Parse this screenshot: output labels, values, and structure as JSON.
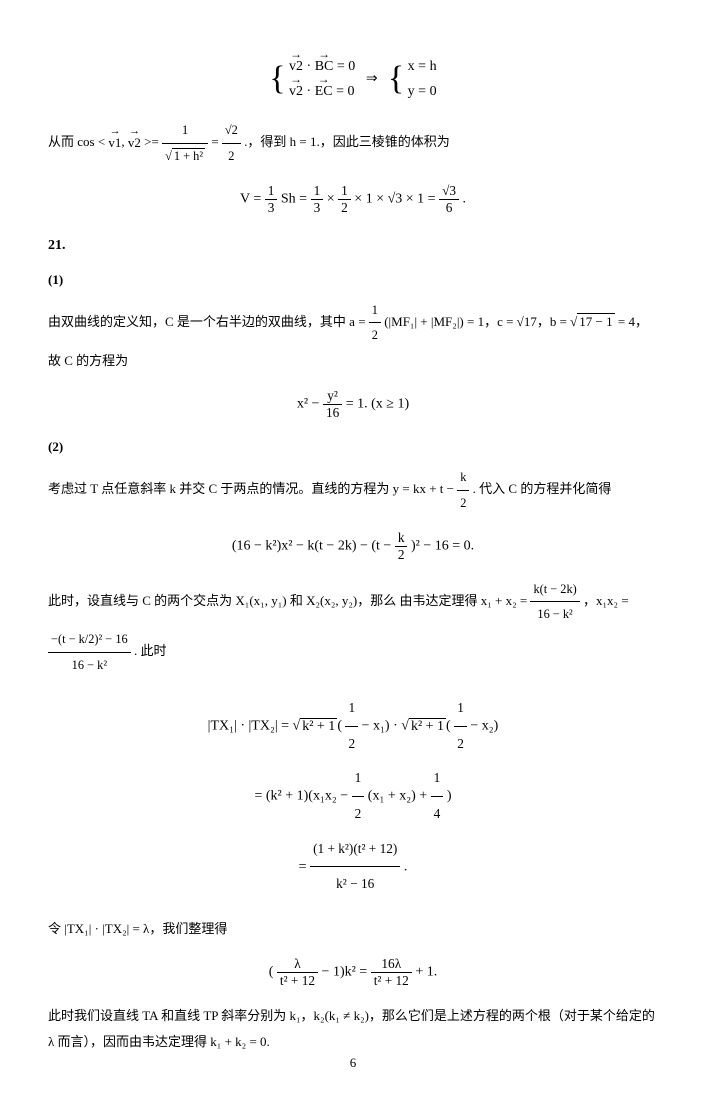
{
  "page_number": "6",
  "eq1": {
    "line1_lhs": "v2",
    "line1_vec2": "BC",
    "line1_rhs": "= 0",
    "line2_lhs": "v2",
    "line2_vec2": "EC",
    "line2_rhs": "= 0",
    "implies": "⇒",
    "res1": "x = h",
    "res2": "y = 0"
  },
  "para1": {
    "t1": "从而 cos < ",
    "v1": "v1",
    "comma": ", ",
    "v2": "v2",
    "t2": " >= ",
    "frac1_num": "1",
    "frac1_den_pre": "√",
    "frac1_den": "1 + h²",
    "eq": " = ",
    "frac2_num": "√2",
    "frac2_den": "2",
    "t3": ".，得到 h = 1.，因此三棱锥的体积为"
  },
  "eq2": {
    "lhs": "V = ",
    "f1n": "1",
    "f1d": "3",
    "mid1": "Sh = ",
    "f2n": "1",
    "f2d": "3",
    "times1": " × ",
    "f3n": "1",
    "f3d": "2",
    "mid2": " × 1 × √3 × 1 = ",
    "f4n": "√3",
    "f4d": "6",
    "end": "."
  },
  "h21": "21.",
  "h21_1": "(1)",
  "para2": {
    "t1": "由双曲线的定义知，C 是一个右半边的双曲线，其中 a = ",
    "f1n": "1",
    "f1d": "2",
    "t2": "(|MF₁| + |MF₂|) = 1，c = √17，b = √",
    "sqrt_inner": "17 − 1",
    "t3": " = 4，故 C 的方程为"
  },
  "eq3": {
    "pre": "x² − ",
    "fn": "y²",
    "fd": "16",
    "post": " = 1.  (x ≥ 1)"
  },
  "h21_2": "(2)",
  "para3": {
    "t1": "考虑过 T 点任意斜率 k 并交 C 于两点的情况。直线的方程为 y = kx + t − ",
    "fn": "k",
    "fd": "2",
    "t2": ". 代入 C 的方程并化简得"
  },
  "eq4": {
    "t1": "(16 − k²)x² − k(t − 2k) − (t − ",
    "fn": "k",
    "fd": "2",
    "t2": ")² − 16 = 0."
  },
  "para4": {
    "t1": "此时，设直线与 C 的两个交点为 X₁(x₁, y₁) 和 X₂(x₂, y₂)，那么 由韦达定理得 x₁ + x₂ = ",
    "f1n": "k(t − 2k)",
    "f1d": "16 − k²",
    "t2": "，x₁x₂ = ",
    "f2n": "−(t − k/2)² − 16",
    "f2d": "16 − k²",
    "t3": ". 此时"
  },
  "eq5a": {
    "lhs": "|TX₁| · |TX₂| = √",
    "s1": "k² + 1",
    "mid1": "(",
    "f1n": "1",
    "f1d": "2",
    "mid2": " − x₁) · √",
    "s2": "k² + 1",
    "mid3": "(",
    "f2n": "1",
    "f2d": "2",
    "mid4": " − x₂)"
  },
  "eq5b": {
    "pre": "= (k² + 1)(x₁x₂ − ",
    "f1n": "1",
    "f1d": "2",
    "mid": "(x₁ + x₂) + ",
    "f2n": "1",
    "f2d": "4",
    "post": ")"
  },
  "eq5c": {
    "pre": "= ",
    "fn": "(1 + k²)(t² + 12)",
    "fd": "k² − 16",
    "post": "."
  },
  "para5": "令 |TX₁| · |TX₂| = λ，我们整理得",
  "eq6": {
    "pre": "(",
    "f1n": "λ",
    "f1d": "t² + 12",
    "mid": " − 1)k² = ",
    "f2n": "16λ",
    "f2d": "t² + 12",
    "post": " + 1."
  },
  "para6": "此时我们设直线 TA 和直线 TP 斜率分别为 k₁，k₂(k₁ ≠ k₂)，那么它们是上述方程的两个根（对于某个给定的 λ 而言），因而由韦达定理得 k₁ + k₂ = 0."
}
